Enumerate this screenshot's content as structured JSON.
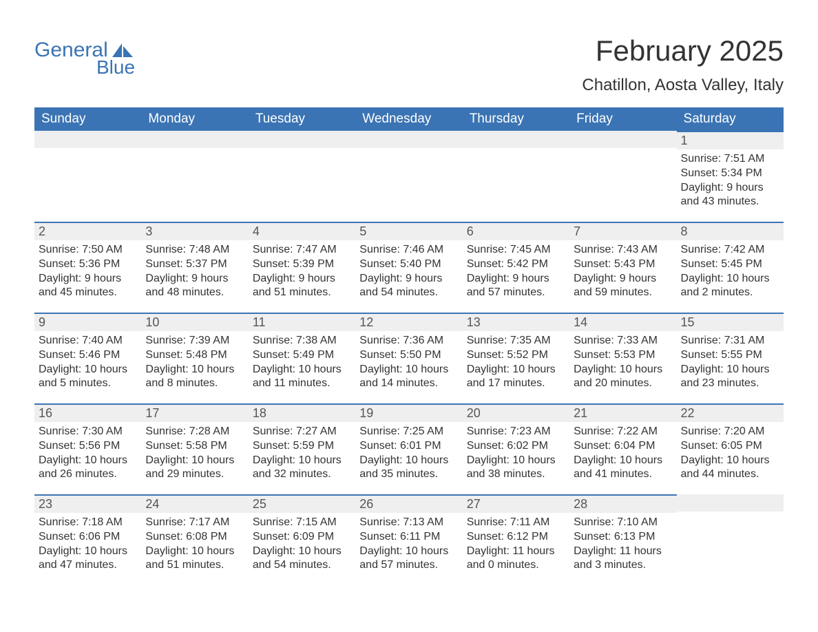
{
  "logo": {
    "text_general": "General",
    "text_blue": "Blue"
  },
  "title": "February 2025",
  "location": "Chatillon, Aosta Valley, Italy",
  "colors": {
    "header_bg": "#3b74b4",
    "header_text": "#ffffff",
    "daynum_bg": "#efefef",
    "daynum_border": "#3b74b4",
    "body_text": "#333333",
    "logo_color": "#3b74b4",
    "page_bg": "#ffffff"
  },
  "typography": {
    "title_fontsize": 42,
    "location_fontsize": 24,
    "dayheader_fontsize": 19,
    "daynum_fontsize": 18,
    "dayinfo_fontsize": 16
  },
  "day_headers": [
    "Sunday",
    "Monday",
    "Tuesday",
    "Wednesday",
    "Thursday",
    "Friday",
    "Saturday"
  ],
  "weeks": [
    [
      {
        "blank": true
      },
      {
        "blank": true
      },
      {
        "blank": true
      },
      {
        "blank": true
      },
      {
        "blank": true
      },
      {
        "blank": true
      },
      {
        "day": "1",
        "sunrise": "Sunrise: 7:51 AM",
        "sunset": "Sunset: 5:34 PM",
        "daylight1": "Daylight: 9 hours",
        "daylight2": "and 43 minutes."
      }
    ],
    [
      {
        "day": "2",
        "sunrise": "Sunrise: 7:50 AM",
        "sunset": "Sunset: 5:36 PM",
        "daylight1": "Daylight: 9 hours",
        "daylight2": "and 45 minutes."
      },
      {
        "day": "3",
        "sunrise": "Sunrise: 7:48 AM",
        "sunset": "Sunset: 5:37 PM",
        "daylight1": "Daylight: 9 hours",
        "daylight2": "and 48 minutes."
      },
      {
        "day": "4",
        "sunrise": "Sunrise: 7:47 AM",
        "sunset": "Sunset: 5:39 PM",
        "daylight1": "Daylight: 9 hours",
        "daylight2": "and 51 minutes."
      },
      {
        "day": "5",
        "sunrise": "Sunrise: 7:46 AM",
        "sunset": "Sunset: 5:40 PM",
        "daylight1": "Daylight: 9 hours",
        "daylight2": "and 54 minutes."
      },
      {
        "day": "6",
        "sunrise": "Sunrise: 7:45 AM",
        "sunset": "Sunset: 5:42 PM",
        "daylight1": "Daylight: 9 hours",
        "daylight2": "and 57 minutes."
      },
      {
        "day": "7",
        "sunrise": "Sunrise: 7:43 AM",
        "sunset": "Sunset: 5:43 PM",
        "daylight1": "Daylight: 9 hours",
        "daylight2": "and 59 minutes."
      },
      {
        "day": "8",
        "sunrise": "Sunrise: 7:42 AM",
        "sunset": "Sunset: 5:45 PM",
        "daylight1": "Daylight: 10 hours",
        "daylight2": "and 2 minutes."
      }
    ],
    [
      {
        "day": "9",
        "sunrise": "Sunrise: 7:40 AM",
        "sunset": "Sunset: 5:46 PM",
        "daylight1": "Daylight: 10 hours",
        "daylight2": "and 5 minutes."
      },
      {
        "day": "10",
        "sunrise": "Sunrise: 7:39 AM",
        "sunset": "Sunset: 5:48 PM",
        "daylight1": "Daylight: 10 hours",
        "daylight2": "and 8 minutes."
      },
      {
        "day": "11",
        "sunrise": "Sunrise: 7:38 AM",
        "sunset": "Sunset: 5:49 PM",
        "daylight1": "Daylight: 10 hours",
        "daylight2": "and 11 minutes."
      },
      {
        "day": "12",
        "sunrise": "Sunrise: 7:36 AM",
        "sunset": "Sunset: 5:50 PM",
        "daylight1": "Daylight: 10 hours",
        "daylight2": "and 14 minutes."
      },
      {
        "day": "13",
        "sunrise": "Sunrise: 7:35 AM",
        "sunset": "Sunset: 5:52 PM",
        "daylight1": "Daylight: 10 hours",
        "daylight2": "and 17 minutes."
      },
      {
        "day": "14",
        "sunrise": "Sunrise: 7:33 AM",
        "sunset": "Sunset: 5:53 PM",
        "daylight1": "Daylight: 10 hours",
        "daylight2": "and 20 minutes."
      },
      {
        "day": "15",
        "sunrise": "Sunrise: 7:31 AM",
        "sunset": "Sunset: 5:55 PM",
        "daylight1": "Daylight: 10 hours",
        "daylight2": "and 23 minutes."
      }
    ],
    [
      {
        "day": "16",
        "sunrise": "Sunrise: 7:30 AM",
        "sunset": "Sunset: 5:56 PM",
        "daylight1": "Daylight: 10 hours",
        "daylight2": "and 26 minutes."
      },
      {
        "day": "17",
        "sunrise": "Sunrise: 7:28 AM",
        "sunset": "Sunset: 5:58 PM",
        "daylight1": "Daylight: 10 hours",
        "daylight2": "and 29 minutes."
      },
      {
        "day": "18",
        "sunrise": "Sunrise: 7:27 AM",
        "sunset": "Sunset: 5:59 PM",
        "daylight1": "Daylight: 10 hours",
        "daylight2": "and 32 minutes."
      },
      {
        "day": "19",
        "sunrise": "Sunrise: 7:25 AM",
        "sunset": "Sunset: 6:01 PM",
        "daylight1": "Daylight: 10 hours",
        "daylight2": "and 35 minutes."
      },
      {
        "day": "20",
        "sunrise": "Sunrise: 7:23 AM",
        "sunset": "Sunset: 6:02 PM",
        "daylight1": "Daylight: 10 hours",
        "daylight2": "and 38 minutes."
      },
      {
        "day": "21",
        "sunrise": "Sunrise: 7:22 AM",
        "sunset": "Sunset: 6:04 PM",
        "daylight1": "Daylight: 10 hours",
        "daylight2": "and 41 minutes."
      },
      {
        "day": "22",
        "sunrise": "Sunrise: 7:20 AM",
        "sunset": "Sunset: 6:05 PM",
        "daylight1": "Daylight: 10 hours",
        "daylight2": "and 44 minutes."
      }
    ],
    [
      {
        "day": "23",
        "sunrise": "Sunrise: 7:18 AM",
        "sunset": "Sunset: 6:06 PM",
        "daylight1": "Daylight: 10 hours",
        "daylight2": "and 47 minutes."
      },
      {
        "day": "24",
        "sunrise": "Sunrise: 7:17 AM",
        "sunset": "Sunset: 6:08 PM",
        "daylight1": "Daylight: 10 hours",
        "daylight2": "and 51 minutes."
      },
      {
        "day": "25",
        "sunrise": "Sunrise: 7:15 AM",
        "sunset": "Sunset: 6:09 PM",
        "daylight1": "Daylight: 10 hours",
        "daylight2": "and 54 minutes."
      },
      {
        "day": "26",
        "sunrise": "Sunrise: 7:13 AM",
        "sunset": "Sunset: 6:11 PM",
        "daylight1": "Daylight: 10 hours",
        "daylight2": "and 57 minutes."
      },
      {
        "day": "27",
        "sunrise": "Sunrise: 7:11 AM",
        "sunset": "Sunset: 6:12 PM",
        "daylight1": "Daylight: 11 hours",
        "daylight2": "and 0 minutes."
      },
      {
        "day": "28",
        "sunrise": "Sunrise: 7:10 AM",
        "sunset": "Sunset: 6:13 PM",
        "daylight1": "Daylight: 11 hours",
        "daylight2": "and 3 minutes."
      },
      {
        "blank": true
      }
    ]
  ]
}
